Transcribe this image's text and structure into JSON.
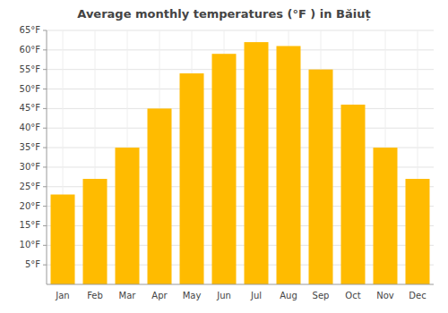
{
  "chart_data": {
    "type": "bar",
    "title": "Average monthly temperatures (°F ) in Băiuț",
    "categories": [
      "Jan",
      "Feb",
      "Mar",
      "Apr",
      "May",
      "Jun",
      "Jul",
      "Aug",
      "Sep",
      "Oct",
      "Nov",
      "Dec"
    ],
    "values": [
      23,
      27,
      35,
      45,
      54,
      59,
      62,
      61,
      55,
      46,
      35,
      27
    ],
    "color": "#FFBB00",
    "ylim": [
      0,
      65
    ],
    "yticks": [
      {
        "value": 5,
        "label": "5°F"
      },
      {
        "value": 10,
        "label": "10°F"
      },
      {
        "value": 15,
        "label": "15°F"
      },
      {
        "value": 20,
        "label": "20°F"
      },
      {
        "value": 25,
        "label": "25°F"
      },
      {
        "value": 30,
        "label": "30°F"
      },
      {
        "value": 35,
        "label": "35°F"
      },
      {
        "value": 40,
        "label": "40°F"
      },
      {
        "value": 45,
        "label": "45°F"
      },
      {
        "value": 50,
        "label": "50°F"
      },
      {
        "value": 55,
        "label": "55°F"
      },
      {
        "value": 60,
        "label": "60°F"
      },
      {
        "value": 65,
        "label": "65°F"
      }
    ],
    "grid": true
  }
}
